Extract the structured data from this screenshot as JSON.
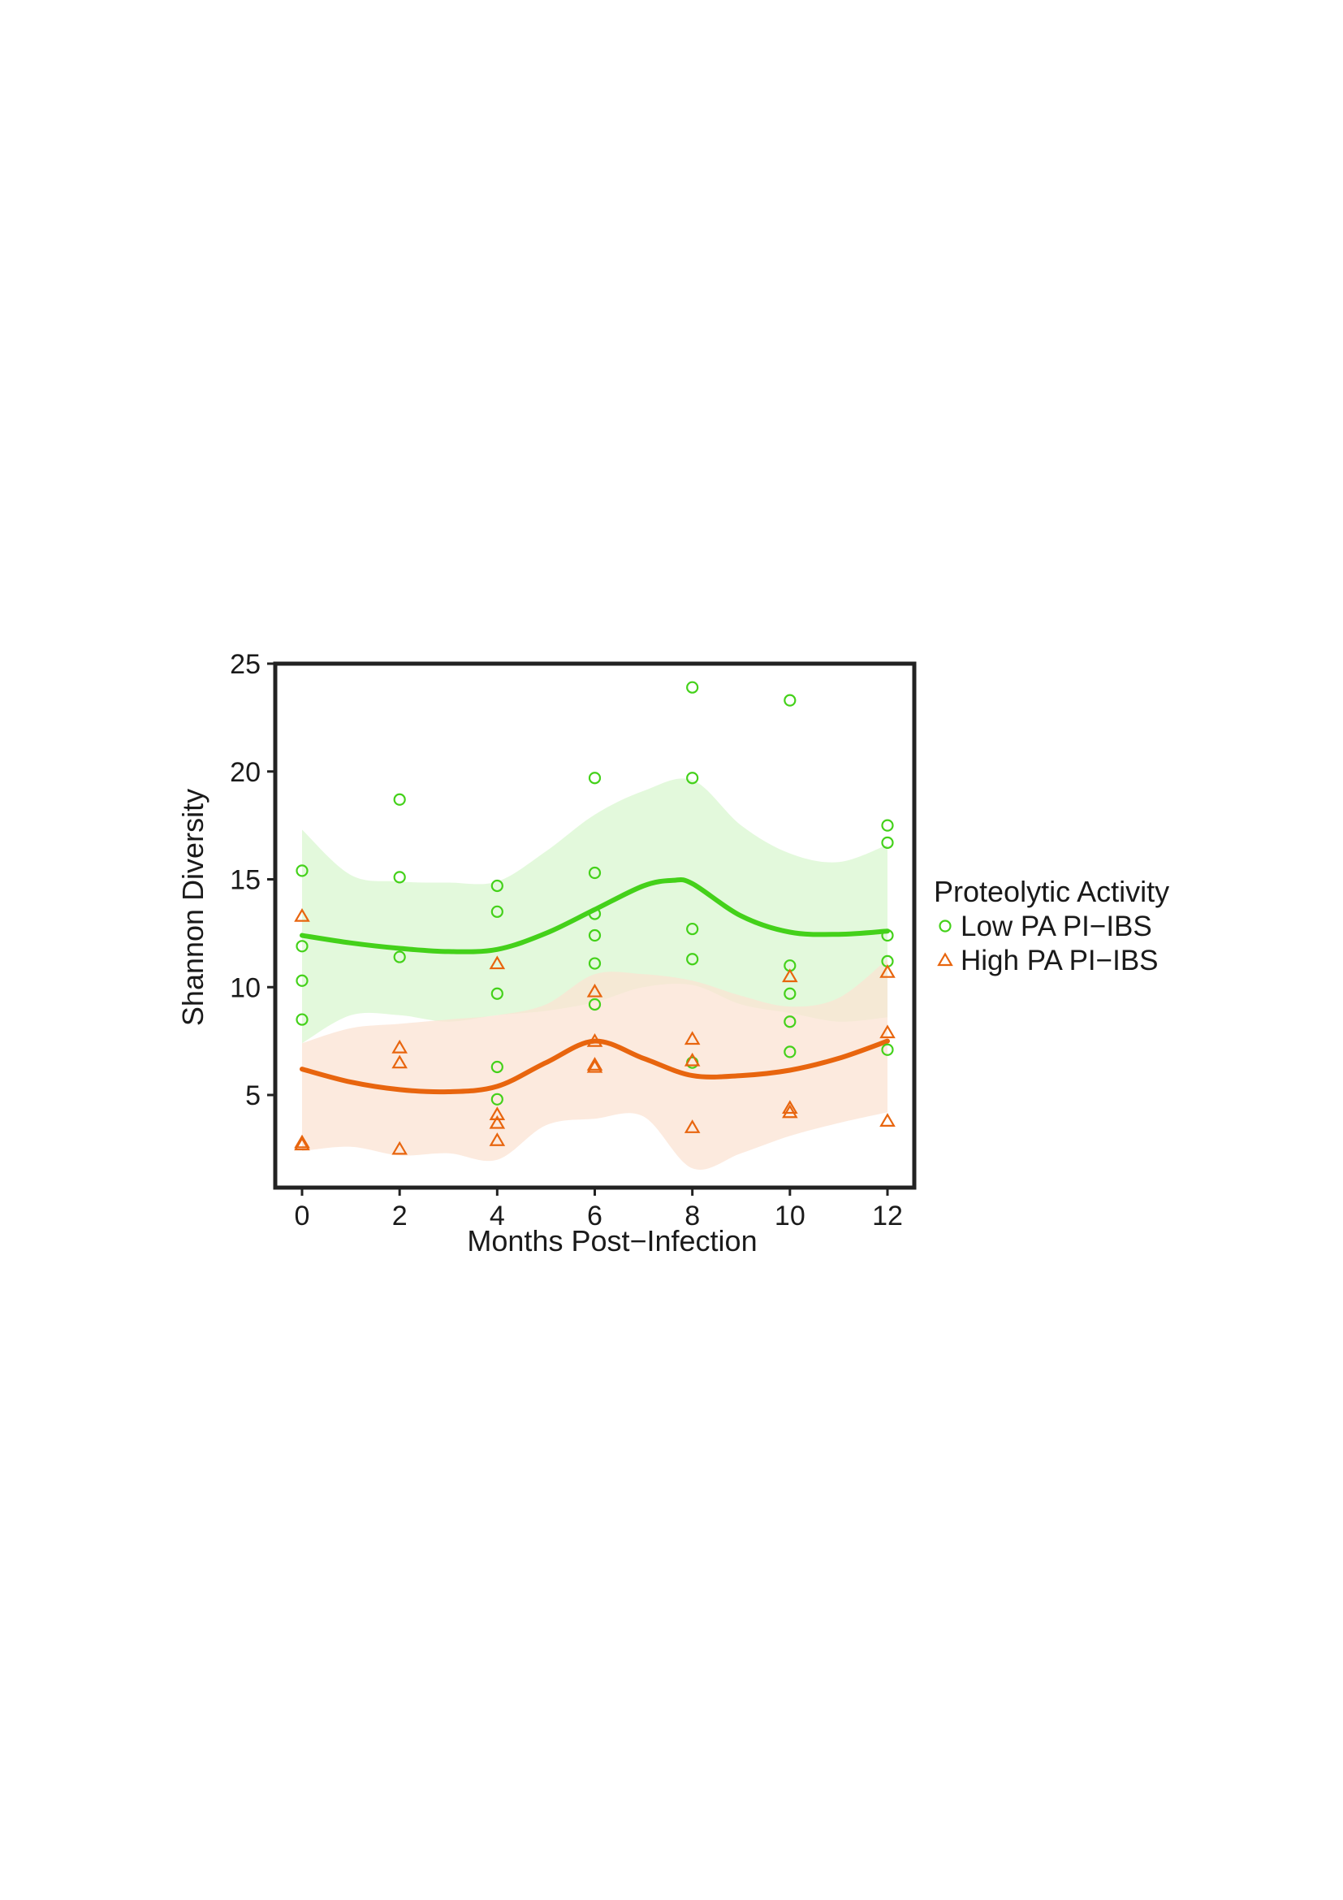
{
  "chart_data": {
    "type": "scatter",
    "xlabel": "Months Post−Infection",
    "ylabel": "Shannon Diversity",
    "xlim": [
      -0.6,
      12.6
    ],
    "ylim": [
      0.5,
      25
    ],
    "xticks": [
      0,
      2,
      4,
      6,
      8,
      10,
      12
    ],
    "yticks": [
      5,
      10,
      15,
      20,
      25
    ],
    "grid": false,
    "legend": {
      "title": "Proteolytic Activity",
      "placement": "right"
    },
    "series": [
      {
        "name": "Low PA PI−IBS",
        "marker": "circle",
        "color": "#44d11a",
        "band_color": "#d9f7d0",
        "points": [
          [
            0,
            15.4
          ],
          [
            0,
            11.9
          ],
          [
            0,
            10.3
          ],
          [
            0,
            8.5
          ],
          [
            2,
            18.7
          ],
          [
            2,
            15.1
          ],
          [
            2,
            11.4
          ],
          [
            4,
            14.7
          ],
          [
            4,
            13.5
          ],
          [
            4,
            9.7
          ],
          [
            4,
            6.3
          ],
          [
            4,
            4.8
          ],
          [
            6,
            19.7
          ],
          [
            6,
            15.3
          ],
          [
            6,
            13.4
          ],
          [
            6,
            12.4
          ],
          [
            6,
            11.1
          ],
          [
            6,
            9.2
          ],
          [
            8,
            23.9
          ],
          [
            8,
            19.7
          ],
          [
            8,
            12.7
          ],
          [
            8,
            11.3
          ],
          [
            8,
            6.5
          ],
          [
            10,
            23.3
          ],
          [
            10,
            11.0
          ],
          [
            10,
            9.7
          ],
          [
            10,
            8.4
          ],
          [
            10,
            7.0
          ],
          [
            12,
            17.5
          ],
          [
            12,
            16.7
          ],
          [
            12,
            12.4
          ],
          [
            12,
            11.2
          ],
          [
            12,
            7.1
          ]
        ],
        "smooth": [
          [
            0,
            12.4
          ],
          [
            1,
            12.05
          ],
          [
            2,
            11.8
          ],
          [
            3,
            11.65
          ],
          [
            4,
            11.75
          ],
          [
            5,
            12.5
          ],
          [
            6,
            13.6
          ],
          [
            7,
            14.7
          ],
          [
            7.6,
            14.95
          ],
          [
            8,
            14.8
          ],
          [
            9,
            13.3
          ],
          [
            10,
            12.55
          ],
          [
            11,
            12.45
          ],
          [
            12,
            12.6
          ]
        ],
        "band_upper": [
          [
            0,
            17.3
          ],
          [
            1,
            15.2
          ],
          [
            2,
            14.9
          ],
          [
            3,
            14.85
          ],
          [
            4,
            14.9
          ],
          [
            5,
            16.3
          ],
          [
            6,
            18.0
          ],
          [
            7,
            19.1
          ],
          [
            8,
            19.6
          ],
          [
            9,
            17.5
          ],
          [
            10,
            16.2
          ],
          [
            11,
            15.8
          ],
          [
            12,
            16.6
          ]
        ],
        "band_lower": [
          [
            0,
            7.4
          ],
          [
            1,
            8.7
          ],
          [
            2,
            8.7
          ],
          [
            3,
            8.4
          ],
          [
            4,
            8.7
          ],
          [
            5,
            8.9
          ],
          [
            6,
            9.3
          ],
          [
            7,
            10.0
          ],
          [
            8,
            10.1
          ],
          [
            9,
            9.2
          ],
          [
            10,
            8.8
          ],
          [
            11,
            8.4
          ],
          [
            12,
            8.6
          ]
        ]
      },
      {
        "name": "High PA PI−IBS",
        "marker": "triangle",
        "color": "#e8650e",
        "band_color": "#fbe3d3",
        "points": [
          [
            0,
            13.3
          ],
          [
            0,
            2.8
          ],
          [
            0,
            2.7
          ],
          [
            2,
            7.2
          ],
          [
            2,
            6.5
          ],
          [
            2,
            2.5
          ],
          [
            4,
            11.1
          ],
          [
            4,
            4.1
          ],
          [
            4,
            3.7
          ],
          [
            4,
            2.9
          ],
          [
            6,
            9.8
          ],
          [
            6,
            7.5
          ],
          [
            6,
            6.4
          ],
          [
            6,
            6.3
          ],
          [
            8,
            7.6
          ],
          [
            8,
            6.6
          ],
          [
            8,
            3.5
          ],
          [
            10,
            10.5
          ],
          [
            10,
            4.4
          ],
          [
            10,
            4.2
          ],
          [
            12,
            10.7
          ],
          [
            12,
            7.9
          ],
          [
            12,
            3.8
          ]
        ],
        "smooth": [
          [
            0,
            6.2
          ],
          [
            1,
            5.6
          ],
          [
            2,
            5.25
          ],
          [
            3,
            5.15
          ],
          [
            4,
            5.4
          ],
          [
            5,
            6.5
          ],
          [
            6,
            7.5
          ],
          [
            7,
            6.7
          ],
          [
            8,
            5.9
          ],
          [
            9,
            5.9
          ],
          [
            10,
            6.15
          ],
          [
            11,
            6.7
          ],
          [
            12,
            7.5
          ]
        ],
        "band_upper": [
          [
            0,
            7.4
          ],
          [
            1,
            8.1
          ],
          [
            2,
            8.3
          ],
          [
            3,
            8.5
          ],
          [
            4,
            8.7
          ],
          [
            5,
            9.2
          ],
          [
            6,
            10.6
          ],
          [
            7,
            10.6
          ],
          [
            8,
            10.3
          ],
          [
            9,
            9.6
          ],
          [
            10,
            9.1
          ],
          [
            11,
            9.5
          ],
          [
            12,
            11.3
          ]
        ],
        "band_lower": [
          [
            0,
            2.4
          ],
          [
            1,
            2.6
          ],
          [
            2,
            2.2
          ],
          [
            3,
            2.3
          ],
          [
            4,
            2.0
          ],
          [
            5,
            3.6
          ],
          [
            6,
            3.9
          ],
          [
            7,
            4.0
          ],
          [
            8,
            1.6
          ],
          [
            9,
            2.3
          ],
          [
            10,
            3.1
          ],
          [
            11,
            3.7
          ],
          [
            12,
            4.2
          ]
        ]
      }
    ]
  }
}
